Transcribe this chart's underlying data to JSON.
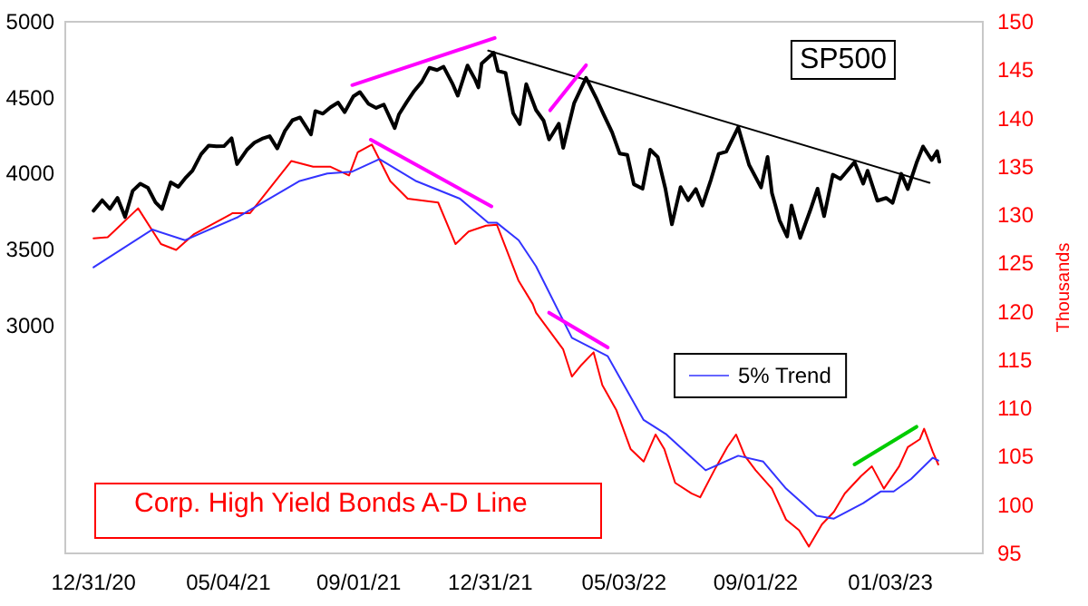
{
  "chart_data": {
    "type": "line",
    "title": "Corp. High Yield Bonds A-D Line",
    "y2label": "Thousands",
    "annotations": [
      "SP500"
    ],
    "xlim": [
      "2020-12-05",
      "2023-03-29"
    ],
    "xticks": [
      {
        "value": "2020-12-31",
        "label": "12/31/20"
      },
      {
        "value": "2021-05-04",
        "label": "05/04/21"
      },
      {
        "value": "2021-09-01",
        "label": "09/01/21"
      },
      {
        "value": "2021-12-31",
        "label": "12/31/21"
      },
      {
        "value": "2022-05-03",
        "label": "05/03/22"
      },
      {
        "value": "2022-09-01",
        "label": "09/01/22"
      },
      {
        "value": "2023-01-03",
        "label": "01/03/23"
      }
    ],
    "ylim": [
      1500,
      5000
    ],
    "yticks": [
      3000,
      3500,
      4000,
      4500,
      5000
    ],
    "y2lim": [
      95,
      150
    ],
    "y2ticks": [
      95,
      100,
      105,
      110,
      115,
      120,
      125,
      130,
      135,
      140,
      145,
      150
    ],
    "legend": "right",
    "grid": false,
    "marker": "none",
    "line_style": "solid",
    "series": [
      {
        "color": "#000000",
        "axis": "y",
        "x": [
          "2020-12-31",
          "2021-01-08",
          "2021-01-15",
          "2021-01-22",
          "2021-01-29",
          "2021-02-05",
          "2021-02-12",
          "2021-02-19",
          "2021-02-26",
          "2021-03-04",
          "2021-03-12",
          "2021-03-19",
          "2021-03-26",
          "2021-04-01",
          "2021-04-09",
          "2021-04-16",
          "2021-04-23",
          "2021-04-30",
          "2021-05-07",
          "2021-05-12",
          "2021-05-21",
          "2021-05-28",
          "2021-06-04",
          "2021-06-11",
          "2021-06-18",
          "2021-06-25",
          "2021-07-02",
          "2021-07-09",
          "2021-07-19",
          "2021-07-23",
          "2021-07-30",
          "2021-08-06",
          "2021-08-13",
          "2021-08-19",
          "2021-08-27",
          "2021-09-02",
          "2021-09-10",
          "2021-09-17",
          "2021-09-24",
          "2021-10-04",
          "2021-10-08",
          "2021-10-15",
          "2021-10-22",
          "2021-10-29",
          "2021-11-05",
          "2021-11-12",
          "2021-11-18",
          "2021-11-26",
          "2021-12-01",
          "2021-12-10",
          "2021-12-17",
          "2021-12-20",
          "2021-12-23",
          "2022-01-03",
          "2022-01-07",
          "2022-01-14",
          "2022-01-21",
          "2022-01-27",
          "2022-02-02",
          "2022-02-11",
          "2022-02-18",
          "2022-02-23",
          "2022-03-04",
          "2022-03-08",
          "2022-03-18",
          "2022-03-29",
          "2022-04-08",
          "2022-04-14",
          "2022-04-22",
          "2022-04-29",
          "2022-05-06",
          "2022-05-12",
          "2022-05-20",
          "2022-05-27",
          "2022-06-03",
          "2022-06-10",
          "2022-06-16",
          "2022-06-24",
          "2022-07-01",
          "2022-07-08",
          "2022-07-14",
          "2022-07-22",
          "2022-07-29",
          "2022-08-05",
          "2022-08-16",
          "2022-08-26",
          "2022-09-06",
          "2022-09-12",
          "2022-09-16",
          "2022-09-23",
          "2022-09-30",
          "2022-10-04",
          "2022-10-12",
          "2022-10-21",
          "2022-10-28",
          "2022-11-03",
          "2022-11-11",
          "2022-11-18",
          "2022-12-01",
          "2022-12-09",
          "2022-12-13",
          "2022-12-22",
          "2022-12-30",
          "2023-01-05",
          "2023-01-13",
          "2023-01-19",
          "2023-01-27",
          "2023-02-02",
          "2023-02-10",
          "2023-02-15",
          "2023-02-17"
        ],
        "values": [
          3756,
          3825,
          3768,
          3841,
          3714,
          3887,
          3934,
          3907,
          3811,
          3768,
          3943,
          3913,
          3975,
          4020,
          4129,
          4185,
          4180,
          4181,
          4233,
          4063,
          4156,
          4204,
          4230,
          4247,
          4166,
          4281,
          4352,
          4370,
          4258,
          4412,
          4395,
          4437,
          4468,
          4405,
          4509,
          4537,
          4459,
          4433,
          4455,
          4300,
          4391,
          4471,
          4545,
          4605,
          4697,
          4682,
          4704,
          4595,
          4513,
          4712,
          4620,
          4568,
          4725,
          4796,
          4677,
          4663,
          4398,
          4326,
          4589,
          4419,
          4349,
          4225,
          4329,
          4170,
          4463,
          4631,
          4488,
          4393,
          4272,
          4132,
          4123,
          3930,
          3901,
          4158,
          4109,
          3901,
          3666,
          3912,
          3825,
          3899,
          3790,
          3962,
          4130,
          4145,
          4305,
          4058,
          3909,
          4110,
          3873,
          3693,
          3586,
          3791,
          3577,
          3753,
          3901,
          3720,
          3993,
          3965,
          4076,
          3934,
          4019,
          3822,
          3840,
          3808,
          3999,
          3899,
          4071,
          4179,
          4090,
          4148,
          4079
        ]
      },
      {
        "color": "#ff0000",
        "axis": "y2",
        "x": [
          "2020-12-31",
          "2021-01-13",
          "2021-02-10",
          "2021-03-03",
          "2021-03-17",
          "2021-04-02",
          "2021-05-08",
          "2021-05-24",
          "2021-07-01",
          "2021-07-21",
          "2021-08-06",
          "2021-08-23",
          "2021-08-31",
          "2021-09-13",
          "2021-09-30",
          "2021-10-16",
          "2021-11-13",
          "2021-11-29",
          "2021-12-11",
          "2021-12-27",
          "2022-01-06",
          "2022-01-26",
          "2022-02-08",
          "2022-02-11",
          "2022-03-08",
          "2022-03-16",
          "2022-03-24",
          "2022-04-05",
          "2022-04-13",
          "2022-04-26",
          "2022-05-09",
          "2022-05-21",
          "2022-06-01",
          "2022-06-09",
          "2022-06-19",
          "2022-07-04",
          "2022-07-12",
          "2022-07-25",
          "2022-08-06",
          "2022-08-14",
          "2022-08-22",
          "2022-09-01",
          "2022-09-16",
          "2022-09-29",
          "2022-10-11",
          "2022-10-20",
          "2022-11-01",
          "2022-11-12",
          "2022-11-22",
          "2022-12-07",
          "2022-12-17",
          "2022-12-28",
          "2023-01-11",
          "2023-01-19",
          "2023-01-30",
          "2023-02-03",
          "2023-02-11",
          "2023-02-16"
        ],
        "values": [
          127.6,
          127.7,
          130.7,
          127.0,
          126.4,
          128.0,
          130.2,
          130.2,
          135.6,
          135.0,
          135.0,
          134.1,
          136.5,
          137.3,
          133.5,
          131.7,
          131.3,
          127.0,
          128.3,
          128.9,
          129.0,
          123.2,
          120.8,
          119.9,
          116.1,
          113.3,
          114.4,
          115.8,
          112.4,
          109.8,
          105.8,
          104.5,
          107.3,
          105.8,
          102.3,
          101.2,
          100.8,
          103.6,
          106.0,
          107.3,
          105.1,
          103.6,
          101.7,
          98.5,
          97.4,
          95.7,
          98.0,
          99.3,
          101.2,
          103.0,
          104.0,
          101.7,
          104.0,
          106.0,
          106.8,
          107.9,
          105.5,
          104.2
        ]
      },
      {
        "name": "5% Trend",
        "color": "#3333ff",
        "axis": "y2",
        "x": [
          "2020-12-31",
          "2021-02-23",
          "2021-03-25",
          "2021-05-13",
          "2021-07-08",
          "2021-08-03",
          "2021-08-26",
          "2021-09-20",
          "2021-10-24",
          "2021-12-03",
          "2021-12-29",
          "2022-01-06",
          "2022-01-26",
          "2022-02-11",
          "2022-03-16",
          "2022-04-18",
          "2022-05-21",
          "2022-06-11",
          "2022-07-17",
          "2022-08-16",
          "2022-09-08",
          "2022-09-29",
          "2022-10-27",
          "2022-11-12",
          "2022-12-09",
          "2022-12-25",
          "2023-01-06",
          "2023-01-22",
          "2023-02-11",
          "2023-02-16"
        ],
        "values": [
          124.6,
          128.5,
          127.4,
          129.8,
          133.5,
          134.3,
          134.5,
          135.8,
          133.5,
          131.7,
          129.2,
          129.2,
          127.4,
          124.7,
          117.3,
          115.4,
          108.8,
          107.3,
          103.6,
          105.1,
          104.5,
          101.7,
          98.9,
          98.6,
          100.2,
          101.4,
          101.4,
          102.7,
          104.9,
          104.6
        ]
      },
      {
        "color": "#000000",
        "axis": "y",
        "x": [
          "2021-12-29",
          "2023-02-08"
        ],
        "values": [
          4810,
          3940
        ]
      },
      {
        "color": "#ff00ff",
        "axis": "y",
        "x": [
          "2021-08-26",
          "2022-01-04"
        ],
        "values": [
          4583,
          4893
        ]
      },
      {
        "color": "#ff00ff",
        "axis": "y",
        "x": [
          "2022-02-24",
          "2022-03-29"
        ],
        "values": [
          4417,
          4714
        ]
      },
      {
        "color": "#ff00ff",
        "axis": "y2",
        "x": [
          "2021-09-12",
          "2022-01-01"
        ],
        "values": [
          137.8,
          130.9
        ]
      },
      {
        "color": "#ff00ff",
        "axis": "y2",
        "x": [
          "2022-02-23",
          "2022-04-18"
        ],
        "values": [
          119.9,
          116.3
        ]
      },
      {
        "color": "#00cc00",
        "axis": "y2",
        "x": [
          "2022-12-01",
          "2023-01-27"
        ],
        "values": [
          104.2,
          108.1
        ]
      }
    ]
  }
}
